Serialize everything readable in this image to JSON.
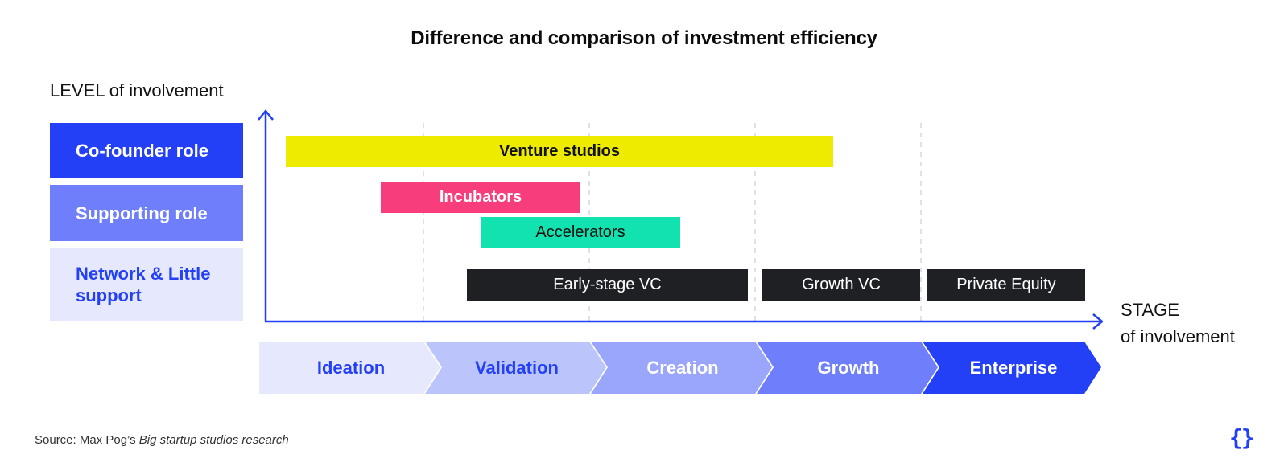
{
  "title": "Difference and comparison of investment efficiency",
  "y_axis_label": "LEVEL of involvement",
  "x_axis_label": {
    "line1": "STAGE",
    "line2": "of involvement"
  },
  "roles": [
    {
      "label": "Co-founder role",
      "color": "#2340f6"
    },
    {
      "label": "Supporting role",
      "color": "#6f7ffb"
    },
    {
      "label": "Network & Little support",
      "color": "#e6e9fd"
    }
  ],
  "bars": {
    "venture_studios": {
      "label": "Venture studios",
      "color": "#eeea00"
    },
    "incubators": {
      "label": "Incubators",
      "color": "#f73d7c"
    },
    "accelerators": {
      "label": "Accelerators",
      "color": "#11e2b0"
    },
    "early_stage_vc": {
      "label": "Early-stage VC",
      "color": "#1f2024"
    },
    "growth_vc": {
      "label": "Growth VC",
      "color": "#1f2024"
    },
    "private_equity": {
      "label": "Private Equity",
      "color": "#1f2024"
    }
  },
  "stages": [
    {
      "label": "Ideation",
      "fill": "#e6e9fd",
      "text_color": "#2340f6"
    },
    {
      "label": "Validation",
      "fill": "#bcc4fc",
      "text_color": "#2340f6"
    },
    {
      "label": "Creation",
      "fill": "#9aa6fb",
      "text_color": "#ffffff"
    },
    {
      "label": "Growth",
      "fill": "#6f7ffb",
      "text_color": "#ffffff"
    },
    {
      "label": "Enterprise",
      "fill": "#2340f6",
      "text_color": "#ffffff"
    }
  ],
  "source": {
    "prefix": "Source: Max Pog’s ",
    "title": "Big startup studios research"
  },
  "logo_icon": "curly-braces-icon",
  "axis_color": "#2340f6"
}
